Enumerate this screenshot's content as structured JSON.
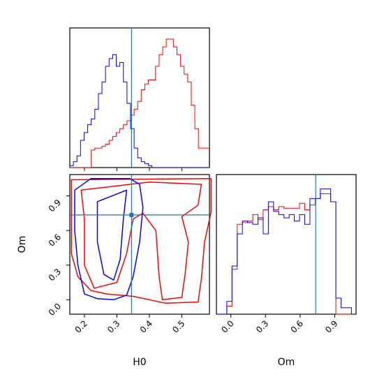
{
  "chart_data": {
    "type": "corner",
    "parameters": [
      "H0",
      "Om"
    ],
    "truth": {
      "H0": 0.345,
      "Om": 0.735
    },
    "colors": {
      "red": "#ff0000",
      "blue": "#0000ff",
      "truth": "#1f77b4"
    },
    "axes": {
      "H0": {
        "label": "H0",
        "range": [
          0.155,
          0.585
        ],
        "ticks": [
          0.2,
          0.3,
          0.4,
          0.5
        ],
        "tick_labels": [
          "0.2",
          "0.3",
          "0.4",
          "0.5"
        ]
      },
      "Om": {
        "label": "Om",
        "range": [
          -0.125,
          1.085
        ],
        "ticks": [
          0.0,
          0.3,
          0.6,
          0.9
        ],
        "tick_labels": [
          "0.0",
          "0.3",
          "0.6",
          "0.9"
        ]
      }
    },
    "marginal_H0": {
      "ymax": 66,
      "bins": [
        0.155,
        0.166,
        0.177,
        0.188,
        0.199,
        0.21,
        0.221,
        0.232,
        0.243,
        0.254,
        0.265,
        0.276,
        0.287,
        0.298,
        0.309,
        0.32,
        0.331,
        0.342,
        0.353,
        0.364,
        0.375,
        0.386,
        0.397,
        0.408,
        0.419,
        0.43,
        0.441,
        0.452,
        0.463,
        0.474,
        0.485,
        0.496,
        0.507,
        0.518,
        0.529,
        0.54,
        0.551,
        0.562,
        0.573,
        0.584
      ],
      "series": [
        {
          "color": "red",
          "values": [
            0,
            0,
            0,
            0,
            0,
            0,
            9,
            10,
            10,
            11,
            12,
            14,
            16,
            18,
            20,
            22,
            24,
            27,
            30,
            34,
            40,
            43,
            45,
            45,
            52,
            58,
            62,
            66,
            66,
            62,
            58,
            52,
            48,
            44,
            32,
            20,
            10,
            10,
            10
          ]
        },
        {
          "color": "blue",
          "values": [
            1,
            3,
            6,
            14,
            18,
            22,
            25,
            30,
            38,
            44,
            52,
            56,
            58,
            52,
            54,
            44,
            33,
            20,
            10,
            5,
            3,
            2,
            1,
            0,
            0,
            0,
            0,
            0,
            0,
            0,
            0,
            0,
            0,
            0,
            0,
            0,
            0,
            0,
            0
          ]
        }
      ]
    },
    "marginal_Om": {
      "ymax": 80,
      "bins": [
        -0.125,
        -0.08,
        -0.035,
        0.01,
        0.055,
        0.1,
        0.145,
        0.19,
        0.235,
        0.28,
        0.325,
        0.37,
        0.415,
        0.46,
        0.505,
        0.55,
        0.595,
        0.64,
        0.685,
        0.73,
        0.775,
        0.82,
        0.865,
        0.91,
        0.955,
        1.0,
        1.045,
        1.085
      ],
      "series": [
        {
          "color": "red",
          "values": [
            0,
            0,
            5,
            28,
            56,
            57,
            58,
            62,
            59,
            65,
            67,
            65,
            67,
            66,
            66,
            66,
            69,
            65,
            68,
            72,
            75,
            75,
            70,
            0,
            0,
            0,
            0
          ]
        },
        {
          "color": "blue",
          "values": [
            0,
            0,
            8,
            30,
            50,
            58,
            57,
            56,
            60,
            50,
            70,
            64,
            62,
            60,
            62,
            58,
            62,
            56,
            72,
            72,
            78,
            78,
            70,
            10,
            4,
            4,
            0
          ]
        }
      ]
    },
    "contours": {
      "red": [
        [
          [
            0.16,
            1.04
          ],
          [
            0.59,
            1.05
          ],
          [
            0.59,
            0.76
          ],
          [
            0.57,
            0.5
          ],
          [
            0.56,
            0.18
          ],
          [
            0.55,
            -0.02
          ],
          [
            0.45,
            -0.03
          ],
          [
            0.35,
            0.03
          ],
          [
            0.27,
            0.05
          ],
          [
            0.22,
            0.08
          ],
          [
            0.18,
            0.2
          ],
          [
            0.16,
            0.4
          ],
          [
            0.16,
            0.7
          ]
        ],
        [
          [
            0.19,
            0.95
          ],
          [
            0.4,
            1.02
          ],
          [
            0.56,
            1.0
          ],
          [
            0.55,
            0.82
          ],
          [
            0.5,
            0.72
          ],
          [
            0.52,
            0.5
          ],
          [
            0.51,
            0.22
          ],
          [
            0.5,
            0.02
          ],
          [
            0.44,
            0.0
          ],
          [
            0.43,
            0.2
          ],
          [
            0.42,
            0.6
          ],
          [
            0.38,
            0.75
          ],
          [
            0.35,
            0.7
          ],
          [
            0.33,
            0.4
          ],
          [
            0.3,
            0.15
          ],
          [
            0.23,
            0.1
          ],
          [
            0.2,
            0.3
          ],
          [
            0.2,
            0.7
          ]
        ]
      ],
      "blue": [
        [
          [
            0.17,
            0.95
          ],
          [
            0.22,
            1.05
          ],
          [
            0.28,
            1.05
          ],
          [
            0.34,
            1.05
          ],
          [
            0.37,
            1.0
          ],
          [
            0.38,
            0.8
          ],
          [
            0.37,
            0.5
          ],
          [
            0.35,
            0.2
          ],
          [
            0.33,
            0.04
          ],
          [
            0.29,
            0.0
          ],
          [
            0.24,
            0.01
          ],
          [
            0.2,
            0.05
          ],
          [
            0.18,
            0.3
          ],
          [
            0.17,
            0.6
          ]
        ],
        [
          [
            0.24,
            0.85
          ],
          [
            0.33,
            0.95
          ],
          [
            0.32,
            0.7
          ],
          [
            0.31,
            0.35
          ],
          [
            0.29,
            0.17
          ],
          [
            0.26,
            0.22
          ],
          [
            0.24,
            0.5
          ]
        ]
      ]
    }
  }
}
